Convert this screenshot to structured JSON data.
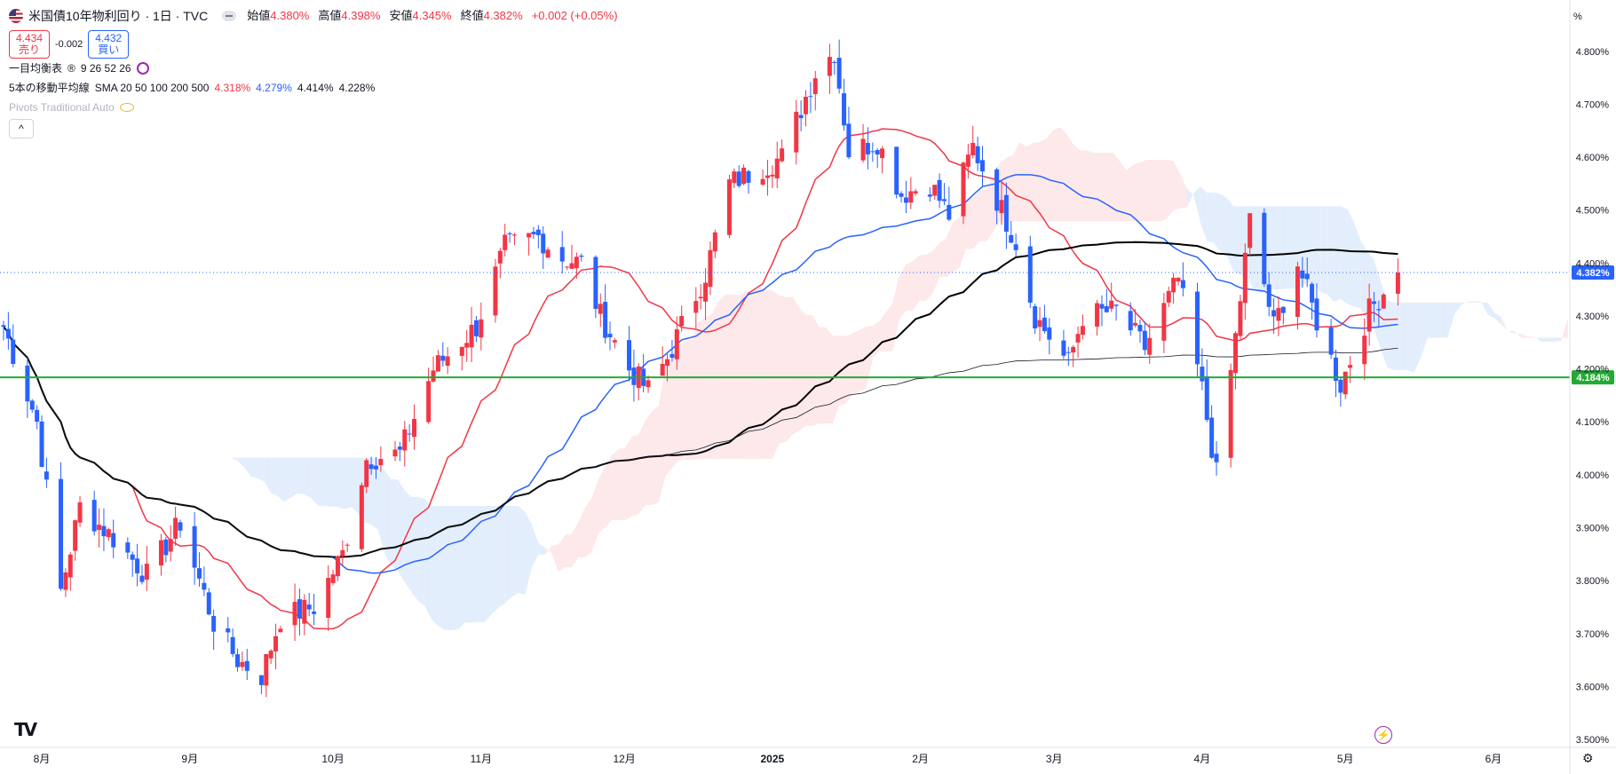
{
  "legend": {
    "symbol_title": "米国債10年物利回り · 1日 · TVC",
    "ohlc": [
      {
        "label": "始値",
        "value": "4.380%"
      },
      {
        "label": "高値",
        "value": "4.398%"
      },
      {
        "label": "安値",
        "value": "4.345%"
      },
      {
        "label": "終値",
        "value": "4.382%"
      },
      {
        "label": "",
        "value": "+0.002 (+0.05%)"
      }
    ],
    "sell": {
      "price": "4.434",
      "label": "売り"
    },
    "spread": "-0.002",
    "buy": {
      "price": "4.432",
      "label": "買い"
    },
    "ichimoku": {
      "name": "一目均衡表",
      "params": "9 26 52 26"
    },
    "sma": {
      "name": "5本の移動平均線",
      "params": "SMA 20 50 100 200 500",
      "values": [
        {
          "v": "4.318%",
          "color": "#f23645"
        },
        {
          "v": "4.279%",
          "color": "#2962ff"
        },
        {
          "v": "4.414%",
          "color": "#131722"
        },
        {
          "v": "4.228%",
          "color": "#131722"
        }
      ]
    },
    "pivots": "Pivots Traditional Auto",
    "collapse": "^"
  },
  "chart_data": {
    "type": "candlestick",
    "y_unit": "%",
    "y_ticks": [
      "4.800%",
      "4.700%",
      "4.600%",
      "4.500%",
      "4.400%",
      "4.300%",
      "4.200%",
      "4.100%",
      "4.000%",
      "3.900%",
      "3.800%",
      "3.700%",
      "3.600%",
      "3.500%"
    ],
    "x_labels": [
      {
        "label": "8月",
        "date": "2024-08-01"
      },
      {
        "label": "9月",
        "date": "2024-09-01"
      },
      {
        "label": "10月",
        "date": "2024-10-01"
      },
      {
        "label": "11月",
        "date": "2024-11-01"
      },
      {
        "label": "12月",
        "date": "2024-12-01"
      },
      {
        "label": "2025",
        "date": "2025-01-01"
      },
      {
        "label": "2月",
        "date": "2025-02-01"
      },
      {
        "label": "3月",
        "date": "2025-03-01"
      },
      {
        "label": "4月",
        "date": "2025-04-01"
      },
      {
        "label": "5月",
        "date": "2025-05-01"
      },
      {
        "label": "6月",
        "date": "2025-06-01"
      }
    ],
    "x_range": [
      "2024-07-24",
      "2025-06-17"
    ],
    "y_range": [
      3.485,
      4.86
    ],
    "last_price": {
      "value": 4.382,
      "label": "4.382%"
    },
    "horizontal_line": {
      "value": 4.184,
      "label": "4.184%",
      "color": "#22ab34"
    },
    "up_color": "#f23645",
    "down_color": "#2962ff",
    "series_colors": {
      "sma20": "#f23645",
      "sma50": "#2962ff",
      "sma100": "#000000",
      "sma200": "#131722",
      "cloud_bull": "#fde8ea",
      "cloud_bear": "#e3eefc"
    },
    "swing_path": [
      [
        "2024-07-24",
        4.28
      ],
      [
        "2024-07-31",
        4.1
      ],
      [
        "2024-08-05",
        3.78
      ],
      [
        "2024-08-09",
        3.94
      ],
      [
        "2024-08-16",
        3.88
      ],
      [
        "2024-08-23",
        3.81
      ],
      [
        "2024-08-30",
        3.91
      ],
      [
        "2024-09-06",
        3.72
      ],
      [
        "2024-09-11",
        3.65
      ],
      [
        "2024-09-16",
        3.62
      ],
      [
        "2024-09-20",
        3.73
      ],
      [
        "2024-09-27",
        3.75
      ],
      [
        "2024-10-03",
        3.85
      ],
      [
        "2024-10-08",
        4.03
      ],
      [
        "2024-10-15",
        4.04
      ],
      [
        "2024-10-22",
        4.2
      ],
      [
        "2024-10-31",
        4.28
      ],
      [
        "2024-11-06",
        4.43
      ],
      [
        "2024-11-13",
        4.45
      ],
      [
        "2024-11-18",
        4.41
      ],
      [
        "2024-11-22",
        4.4
      ],
      [
        "2024-11-26",
        4.3
      ],
      [
        "2024-12-02",
        4.2
      ],
      [
        "2024-12-06",
        4.16
      ],
      [
        "2024-12-10",
        4.22
      ],
      [
        "2024-12-18",
        4.38
      ],
      [
        "2024-12-23",
        4.55
      ],
      [
        "2025-01-03",
        4.6
      ],
      [
        "2025-01-10",
        4.76
      ],
      [
        "2025-01-14",
        4.8
      ],
      [
        "2025-01-17",
        4.61
      ],
      [
        "2025-01-23",
        4.63
      ],
      [
        "2025-01-28",
        4.53
      ],
      [
        "2025-02-03",
        4.55
      ],
      [
        "2025-02-07",
        4.49
      ],
      [
        "2025-02-12",
        4.62
      ],
      [
        "2025-02-17",
        4.52
      ],
      [
        "2025-02-21",
        4.44
      ],
      [
        "2025-02-25",
        4.3
      ],
      [
        "2025-03-04",
        4.21
      ],
      [
        "2025-03-07",
        4.3
      ],
      [
        "2025-03-14",
        4.31
      ],
      [
        "2025-03-20",
        4.24
      ],
      [
        "2025-03-27",
        4.37
      ],
      [
        "2025-04-01",
        4.16
      ],
      [
        "2025-04-04",
        4.0
      ],
      [
        "2025-04-08",
        4.26
      ],
      [
        "2025-04-11",
        4.48
      ],
      [
        "2025-04-16",
        4.28
      ],
      [
        "2025-04-21",
        4.4
      ],
      [
        "2025-04-25",
        4.29
      ],
      [
        "2025-04-30",
        4.17
      ],
      [
        "2025-05-06",
        4.31
      ],
      [
        "2025-05-12",
        4.382
      ]
    ]
  },
  "axis": {
    "unit_label": "%"
  },
  "icons": {
    "logo": "TV",
    "lightning": "⚡",
    "gear": "⚙"
  }
}
